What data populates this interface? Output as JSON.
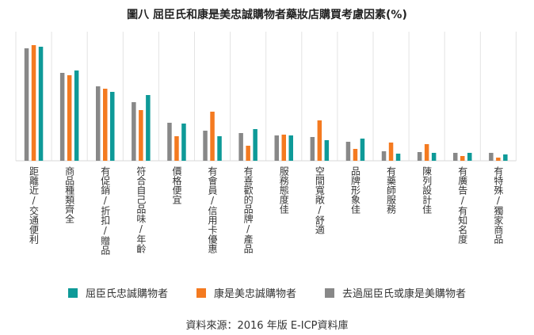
{
  "chart_data": {
    "type": "bar",
    "title": "圖八 屈臣氏和康是美忠誠購物者藥妝店購買考慮因素(%)",
    "note": "No y-axis shown; values are relative estimates",
    "categories": [
      "距離近/交通便利",
      "商品種類齊全",
      "有促銷/折扣/贈品",
      "符合自己品味/年齡",
      "價格便宜",
      "有會員/信用卡優惠",
      "有喜歡的品牌/產品",
      "服務態度佳",
      "空間寬敞/舒適",
      "品牌形象佳",
      "有藥師服務",
      "陳列設計佳",
      "有廣告/有知名度",
      "有特殊/獨家商品"
    ],
    "series": [
      {
        "name": "去過屈臣氏或康是美購物者",
        "color": "#888888",
        "values": [
          71,
          55.5,
          47,
          37,
          24,
          19,
          17.5,
          16,
          15,
          12,
          6,
          5.5,
          5,
          5
        ]
      },
      {
        "name": "康是美忠誠購物者",
        "color": "#f47a20",
        "values": [
          73,
          54,
          45.5,
          32,
          15.5,
          31,
          9.5,
          16.5,
          25.5,
          7.5,
          11.5,
          10.5,
          3,
          2
        ]
      },
      {
        "name": "屈臣氏忠誠購物者",
        "color": "#0e9a98",
        "values": [
          72,
          57,
          43.5,
          41.5,
          23.5,
          15.5,
          20,
          16,
          13,
          14,
          4.5,
          5,
          5,
          4
        ]
      }
    ],
    "legend_order": [
      2,
      1,
      0
    ],
    "legend_position": "bottom",
    "grid": "vertical category separators",
    "ylim": [
      0,
      80
    ]
  },
  "source": "資料來源：2016 年版 E-ICP資料庫"
}
